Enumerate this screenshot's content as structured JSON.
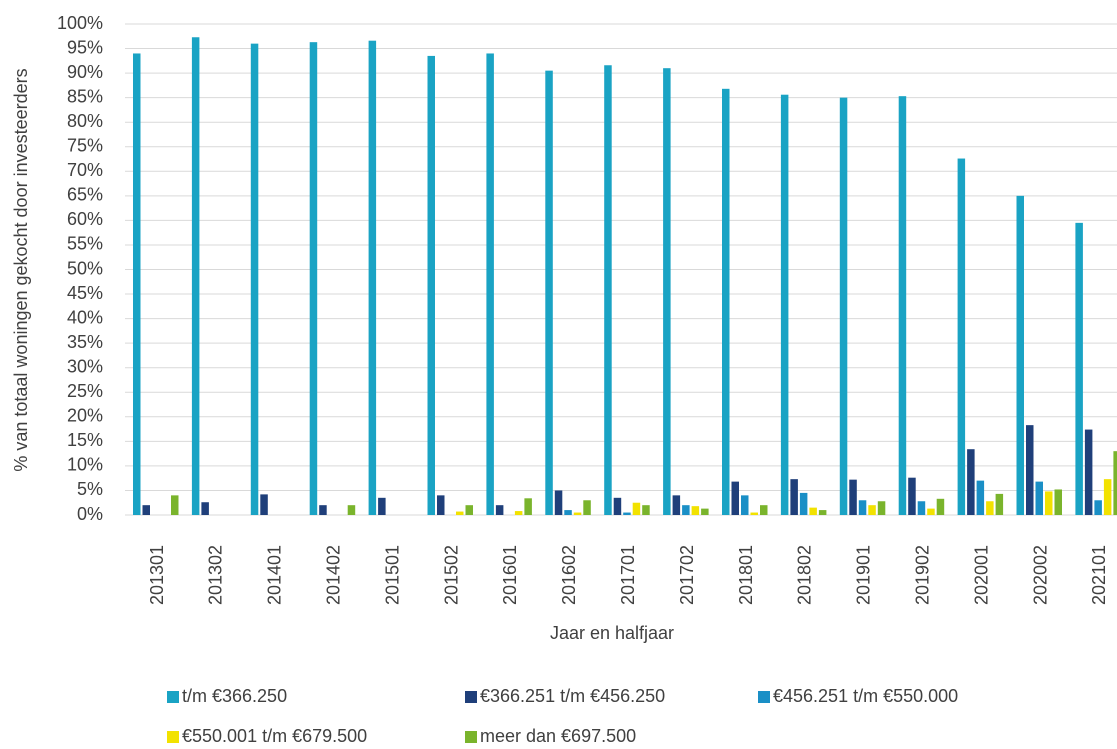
{
  "chart_data": {
    "type": "bar",
    "y_label": "% van totaal woningen gekocht door investeerders",
    "x_label": "Jaar en halfjaar",
    "categories": [
      "201301",
      "201302",
      "201401",
      "201402",
      "201501",
      "201502",
      "201601",
      "201602",
      "201701",
      "201702",
      "201801",
      "201802",
      "201901",
      "201902",
      "202001",
      "202002",
      "202101"
    ],
    "series": [
      {
        "name": "t/m €366.250",
        "color": "#1aa3c4",
        "values": [
          94,
          97.3,
          96,
          96.3,
          96.6,
          93.5,
          94,
          90.5,
          91.6,
          91,
          86.8,
          85.6,
          85,
          85.3,
          72.6,
          65,
          59.5
        ]
      },
      {
        "name": "€366.251 t/m €456.250",
        "color": "#1f3f7a",
        "values": [
          2,
          2.6,
          4.2,
          2,
          3.5,
          4,
          2,
          5,
          3.5,
          4,
          6.8,
          7.3,
          7.2,
          7.6,
          13.4,
          18.3,
          17.4
        ]
      },
      {
        "name": "€456.251 t/m €550.000",
        "color": "#1a8fc6",
        "values": [
          0,
          0,
          0,
          0,
          0,
          0,
          0,
          1,
          0.5,
          2,
          4,
          4.5,
          3,
          2.8,
          7,
          6.8,
          3
        ]
      },
      {
        "name": "€550.001 t/m €679.500",
        "color": "#f2e200",
        "values": [
          0,
          0,
          0,
          0,
          0,
          0.7,
          0.8,
          0.5,
          2.5,
          1.8,
          0.5,
          1.5,
          2,
          1.3,
          2.8,
          4.8,
          7.3
        ]
      },
      {
        "name": "meer dan €697.500",
        "color": "#7ab42c",
        "values": [
          4,
          0,
          0,
          2,
          0,
          2,
          3.4,
          3,
          2,
          1.3,
          2,
          1,
          2.8,
          3.3,
          4.3,
          5.2,
          13
        ]
      }
    ],
    "ylim": [
      0,
      100
    ],
    "yticks": [
      {
        "value": 0,
        "label": "0%"
      },
      {
        "value": 5,
        "label": "5%"
      },
      {
        "value": 10,
        "label": "10%"
      },
      {
        "value": 15,
        "label": "15%"
      },
      {
        "value": 20,
        "label": "20%"
      },
      {
        "value": 25,
        "label": "25%"
      },
      {
        "value": 30,
        "label": "30%"
      },
      {
        "value": 35,
        "label": "35%"
      },
      {
        "value": 40,
        "label": "40%"
      },
      {
        "value": 45,
        "label": "45%"
      },
      {
        "value": 50,
        "label": "50%"
      },
      {
        "value": 55,
        "label": "55%"
      },
      {
        "value": 60,
        "label": "60%"
      },
      {
        "value": 65,
        "label": "65%"
      },
      {
        "value": 70,
        "label": "70%"
      },
      {
        "value": 75,
        "label": "75%"
      },
      {
        "value": 80,
        "label": "80%"
      },
      {
        "value": 85,
        "label": "85%"
      },
      {
        "value": 90,
        "label": "90%"
      },
      {
        "value": 95,
        "label": "95%"
      },
      {
        "value": 100,
        "label": "100%"
      }
    ],
    "grid": true
  }
}
